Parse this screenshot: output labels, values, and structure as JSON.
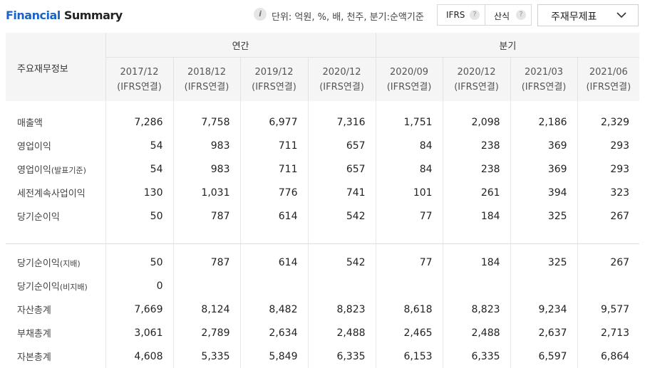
{
  "header": {
    "title_part1": "Financial",
    "title_part2": " Summary",
    "info_glyph": "i",
    "unit_text": "단위: 억원, %, 배, 천주, 분기:순액기준",
    "ifrs_label": "IFRS",
    "calc_label": "산식",
    "help_glyph": "?",
    "dropdown_label": "주재무제표"
  },
  "table": {
    "corner_label": "주요재무정보",
    "groups": {
      "annual": "연간",
      "quarter": "분기"
    },
    "columns": [
      {
        "period": "2017/12",
        "basis": "(IFRS연결)"
      },
      {
        "period": "2018/12",
        "basis": "(IFRS연결)"
      },
      {
        "period": "2019/12",
        "basis": "(IFRS연결)"
      },
      {
        "period": "2020/12",
        "basis": "(IFRS연결)"
      },
      {
        "period": "2020/09",
        "basis": "(IFRS연결)"
      },
      {
        "period": "2020/12",
        "basis": "(IFRS연결)"
      },
      {
        "period": "2021/03",
        "basis": "(IFRS연결)"
      },
      {
        "period": "2021/06",
        "basis": "(IFRS연결)"
      }
    ],
    "rows": [
      {
        "label": "매출액",
        "suffix": "",
        "values": [
          "7,286",
          "7,758",
          "6,977",
          "7,316",
          "1,751",
          "2,098",
          "2,186",
          "2,329"
        ]
      },
      {
        "label": "영업이익",
        "suffix": "",
        "values": [
          "54",
          "983",
          "711",
          "657",
          "84",
          "238",
          "369",
          "293"
        ]
      },
      {
        "label": "영업이익",
        "suffix": "(발표기준)",
        "values": [
          "54",
          "983",
          "711",
          "657",
          "84",
          "238",
          "369",
          "293"
        ]
      },
      {
        "label": "세전계속사업이익",
        "suffix": "",
        "values": [
          "130",
          "1,031",
          "776",
          "741",
          "101",
          "261",
          "394",
          "323"
        ]
      },
      {
        "label": "당기순이익",
        "suffix": "",
        "values": [
          "50",
          "787",
          "614",
          "542",
          "77",
          "184",
          "325",
          "267"
        ]
      },
      {
        "label": "당기순이익",
        "suffix": "(지배)",
        "values": [
          "50",
          "787",
          "614",
          "542",
          "77",
          "184",
          "325",
          "267"
        ]
      },
      {
        "label": "당기순이익",
        "suffix": "(비지배)",
        "values": [
          "0",
          "",
          "",
          "",
          "",
          "",
          "",
          ""
        ]
      },
      {
        "label": "자산총계",
        "suffix": "",
        "values": [
          "7,669",
          "8,124",
          "8,482",
          "8,823",
          "8,618",
          "8,823",
          "9,234",
          "9,577"
        ]
      },
      {
        "label": "부채총계",
        "suffix": "",
        "values": [
          "3,061",
          "2,789",
          "2,634",
          "2,488",
          "2,465",
          "2,488",
          "2,637",
          "2,713"
        ]
      },
      {
        "label": "자본총계",
        "suffix": "",
        "values": [
          "4,608",
          "5,335",
          "5,849",
          "6,335",
          "6,153",
          "6,335",
          "6,597",
          "6,864"
        ]
      }
    ]
  }
}
